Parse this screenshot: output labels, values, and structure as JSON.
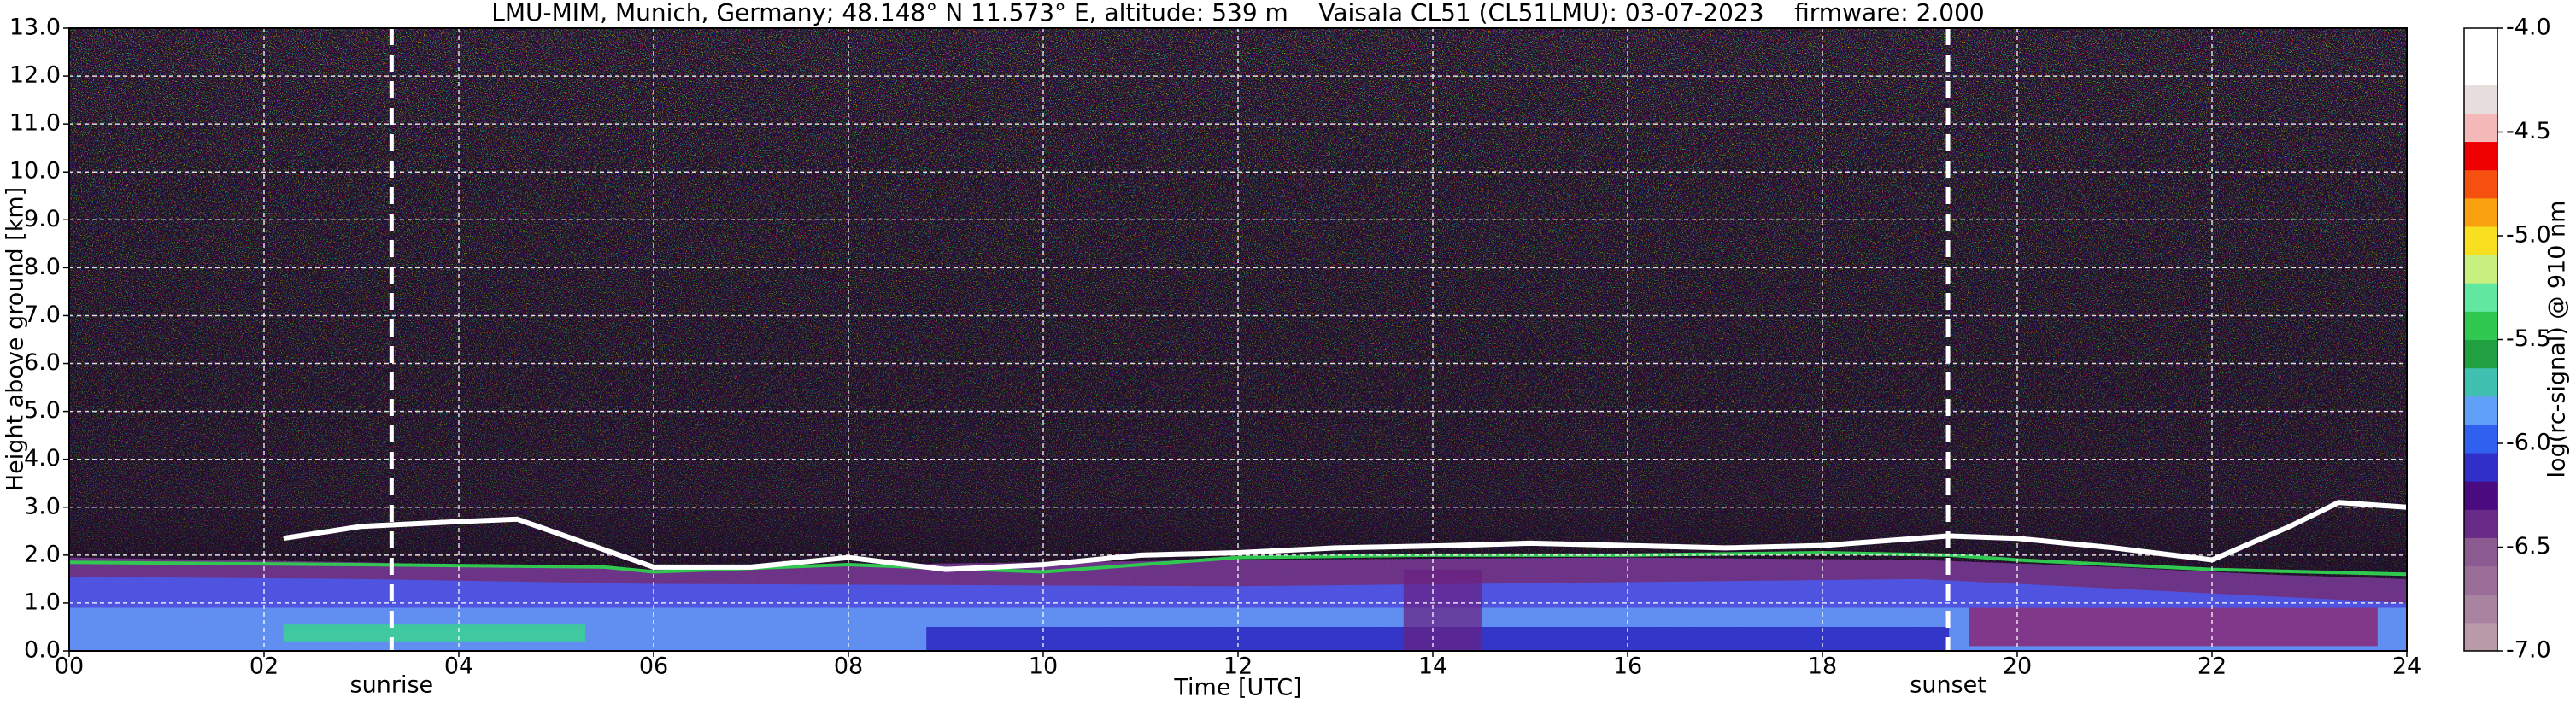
{
  "chart_data": {
    "type": "heatmap",
    "title": "LMU-MIM, Munich, Germany; 48.148° N 11.573° E, altitude: 539 m    Vaisala CL51 (CL51LMU): 03-07-2023    firmware: 2.000",
    "xlabel": "Time [UTC]",
    "ylabel": "Height above ground [km]",
    "xlim": [
      0,
      24
    ],
    "xticks": [
      {
        "value": 0,
        "label": "00"
      },
      {
        "value": 2,
        "label": "02"
      },
      {
        "value": 4,
        "label": "04"
      },
      {
        "value": 6,
        "label": "06"
      },
      {
        "value": 8,
        "label": "08"
      },
      {
        "value": 10,
        "label": "10"
      },
      {
        "value": 12,
        "label": "12"
      },
      {
        "value": 14,
        "label": "14"
      },
      {
        "value": 16,
        "label": "16"
      },
      {
        "value": 18,
        "label": "18"
      },
      {
        "value": 20,
        "label": "20"
      },
      {
        "value": 22,
        "label": "22"
      },
      {
        "value": 24,
        "label": "24"
      }
    ],
    "ylim": [
      0,
      13
    ],
    "yticks": [
      {
        "value": 0,
        "label": "0.0"
      },
      {
        "value": 1,
        "label": "1.0"
      },
      {
        "value": 2,
        "label": "2.0"
      },
      {
        "value": 3,
        "label": "3.0"
      },
      {
        "value": 4,
        "label": "4.0"
      },
      {
        "value": 5,
        "label": "5.0"
      },
      {
        "value": 6,
        "label": "6.0"
      },
      {
        "value": 7,
        "label": "7.0"
      },
      {
        "value": 8,
        "label": "8.0"
      },
      {
        "value": 9,
        "label": "9.0"
      },
      {
        "value": 10,
        "label": "10.0"
      },
      {
        "value": 11,
        "label": "11.0"
      },
      {
        "value": 12,
        "label": "12.0"
      },
      {
        "value": 13,
        "label": "13.0"
      }
    ],
    "grid": true,
    "annotations": [
      {
        "text": "sunrise",
        "x": 3.31
      },
      {
        "text": "sunset",
        "x": 19.29
      }
    ],
    "colorbar": {
      "label": "log(rc-signal) @ 910 nm",
      "lim": [
        -7,
        -4
      ],
      "ticks": [
        {
          "value": -7,
          "label": "-7.0"
        },
        {
          "value": -6.5,
          "label": "-6.5"
        },
        {
          "value": -6,
          "label": "-6.0"
        },
        {
          "value": -5.5,
          "label": "-5.5"
        },
        {
          "value": -5,
          "label": "-5.0"
        },
        {
          "value": -4.5,
          "label": "-4.5"
        },
        {
          "value": -4,
          "label": "-4.0"
        }
      ],
      "colors": [
        "#b89aa8",
        "#a884a0",
        "#9a6e98",
        "#8a5a90",
        "#6a2a88",
        "#4a0a80",
        "#3030c8",
        "#3060f0",
        "#60a0f8",
        "#40c0b0",
        "#20a040",
        "#30c850",
        "#60e8a0",
        "#c8f080",
        "#f8e020",
        "#f8a010",
        "#f55010",
        "#ee0000",
        "#f4b8b8",
        "#e8dede",
        "#ffffff",
        "#ffffff"
      ]
    }
  }
}
